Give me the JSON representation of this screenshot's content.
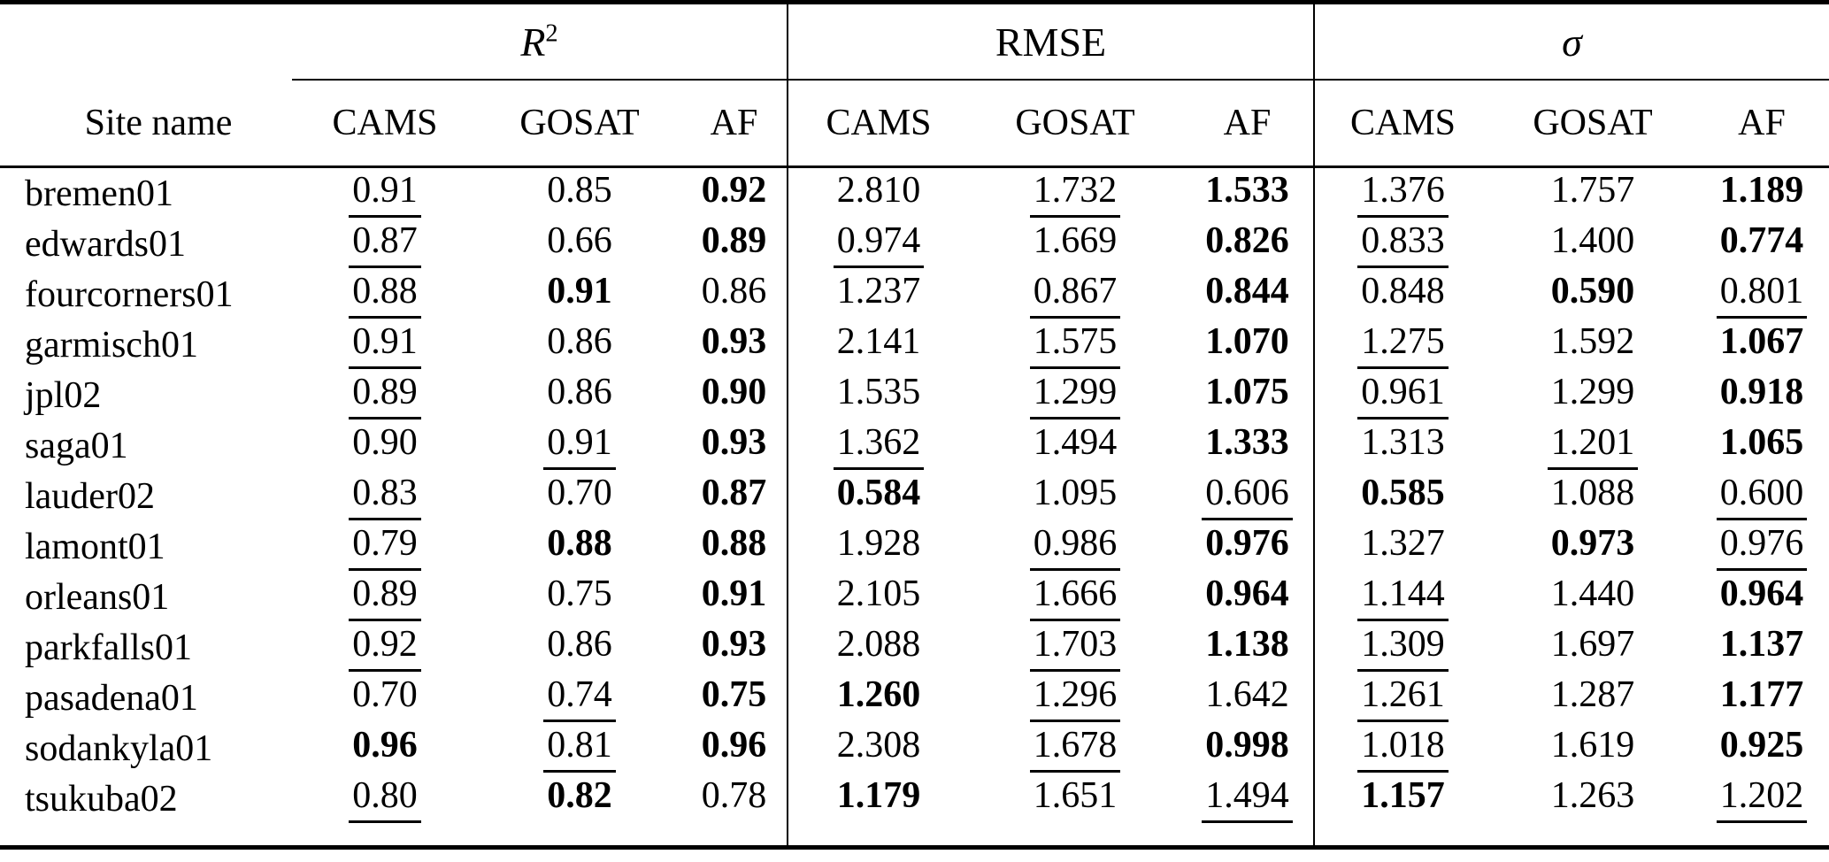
{
  "colors": {
    "text": "#000000",
    "background": "#ffffff",
    "rule": "#000000"
  },
  "table": {
    "site_header": "Site name",
    "groups": [
      {
        "label": "R",
        "sup": "2",
        "columns": [
          "CAMS",
          "GOSAT",
          "AF"
        ]
      },
      {
        "label": "RMSE",
        "sup": "",
        "columns": [
          "CAMS",
          "GOSAT",
          "AF"
        ]
      },
      {
        "label": "σ",
        "sup": "",
        "columns": [
          "CAMS",
          "GOSAT",
          "AF"
        ]
      }
    ],
    "style_key": {
      "n": "normal",
      "b": "bold",
      "u": "underline"
    },
    "rows": [
      {
        "site": "bremen01",
        "cells": [
          {
            "v": "0.91",
            "s": "u"
          },
          {
            "v": "0.85",
            "s": "n"
          },
          {
            "v": "0.92",
            "s": "b"
          },
          {
            "v": "2.810",
            "s": "n"
          },
          {
            "v": "1.732",
            "s": "u"
          },
          {
            "v": "1.533",
            "s": "b"
          },
          {
            "v": "1.376",
            "s": "u"
          },
          {
            "v": "1.757",
            "s": "n"
          },
          {
            "v": "1.189",
            "s": "b"
          }
        ]
      },
      {
        "site": "edwards01",
        "cells": [
          {
            "v": "0.87",
            "s": "u"
          },
          {
            "v": "0.66",
            "s": "n"
          },
          {
            "v": "0.89",
            "s": "b"
          },
          {
            "v": "0.974",
            "s": "u"
          },
          {
            "v": "1.669",
            "s": "n"
          },
          {
            "v": "0.826",
            "s": "b"
          },
          {
            "v": "0.833",
            "s": "u"
          },
          {
            "v": "1.400",
            "s": "n"
          },
          {
            "v": "0.774",
            "s": "b"
          }
        ]
      },
      {
        "site": "fourcorners01",
        "cells": [
          {
            "v": "0.88",
            "s": "u"
          },
          {
            "v": "0.91",
            "s": "b"
          },
          {
            "v": "0.86",
            "s": "n"
          },
          {
            "v": "1.237",
            "s": "n"
          },
          {
            "v": "0.867",
            "s": "u"
          },
          {
            "v": "0.844",
            "s": "b"
          },
          {
            "v": "0.848",
            "s": "n"
          },
          {
            "v": "0.590",
            "s": "b"
          },
          {
            "v": "0.801",
            "s": "u"
          }
        ]
      },
      {
        "site": "garmisch01",
        "cells": [
          {
            "v": "0.91",
            "s": "u"
          },
          {
            "v": "0.86",
            "s": "n"
          },
          {
            "v": "0.93",
            "s": "b"
          },
          {
            "v": "2.141",
            "s": "n"
          },
          {
            "v": "1.575",
            "s": "u"
          },
          {
            "v": "1.070",
            "s": "b"
          },
          {
            "v": "1.275",
            "s": "u"
          },
          {
            "v": "1.592",
            "s": "n"
          },
          {
            "v": "1.067",
            "s": "b"
          }
        ]
      },
      {
        "site": "jpl02",
        "cells": [
          {
            "v": "0.89",
            "s": "u"
          },
          {
            "v": "0.86",
            "s": "n"
          },
          {
            "v": "0.90",
            "s": "b"
          },
          {
            "v": "1.535",
            "s": "n"
          },
          {
            "v": "1.299",
            "s": "u"
          },
          {
            "v": "1.075",
            "s": "b"
          },
          {
            "v": "0.961",
            "s": "u"
          },
          {
            "v": "1.299",
            "s": "n"
          },
          {
            "v": "0.918",
            "s": "b"
          }
        ]
      },
      {
        "site": "saga01",
        "cells": [
          {
            "v": "0.90",
            "s": "n"
          },
          {
            "v": "0.91",
            "s": "u"
          },
          {
            "v": "0.93",
            "s": "b"
          },
          {
            "v": "1.362",
            "s": "u"
          },
          {
            "v": "1.494",
            "s": "n"
          },
          {
            "v": "1.333",
            "s": "b"
          },
          {
            "v": "1.313",
            "s": "n"
          },
          {
            "v": "1.201",
            "s": "u"
          },
          {
            "v": "1.065",
            "s": "b"
          }
        ]
      },
      {
        "site": "lauder02",
        "cells": [
          {
            "v": "0.83",
            "s": "u"
          },
          {
            "v": "0.70",
            "s": "n"
          },
          {
            "v": "0.87",
            "s": "b"
          },
          {
            "v": "0.584",
            "s": "b"
          },
          {
            "v": "1.095",
            "s": "n"
          },
          {
            "v": "0.606",
            "s": "u"
          },
          {
            "v": "0.585",
            "s": "b"
          },
          {
            "v": "1.088",
            "s": "n"
          },
          {
            "v": "0.600",
            "s": "u"
          }
        ]
      },
      {
        "site": "lamont01",
        "cells": [
          {
            "v": "0.79",
            "s": "u"
          },
          {
            "v": "0.88",
            "s": "b"
          },
          {
            "v": "0.88",
            "s": "b"
          },
          {
            "v": "1.928",
            "s": "n"
          },
          {
            "v": "0.986",
            "s": "u"
          },
          {
            "v": "0.976",
            "s": "b"
          },
          {
            "v": "1.327",
            "s": "n"
          },
          {
            "v": "0.973",
            "s": "b"
          },
          {
            "v": "0.976",
            "s": "u"
          }
        ]
      },
      {
        "site": "orleans01",
        "cells": [
          {
            "v": "0.89",
            "s": "u"
          },
          {
            "v": "0.75",
            "s": "n"
          },
          {
            "v": "0.91",
            "s": "b"
          },
          {
            "v": "2.105",
            "s": "n"
          },
          {
            "v": "1.666",
            "s": "u"
          },
          {
            "v": "0.964",
            "s": "b"
          },
          {
            "v": "1.144",
            "s": "u"
          },
          {
            "v": "1.440",
            "s": "n"
          },
          {
            "v": "0.964",
            "s": "b"
          }
        ]
      },
      {
        "site": "parkfalls01",
        "cells": [
          {
            "v": "0.92",
            "s": "u"
          },
          {
            "v": "0.86",
            "s": "n"
          },
          {
            "v": "0.93",
            "s": "b"
          },
          {
            "v": "2.088",
            "s": "n"
          },
          {
            "v": "1.703",
            "s": "u"
          },
          {
            "v": "1.138",
            "s": "b"
          },
          {
            "v": "1.309",
            "s": "u"
          },
          {
            "v": "1.697",
            "s": "n"
          },
          {
            "v": "1.137",
            "s": "b"
          }
        ]
      },
      {
        "site": "pasadena01",
        "cells": [
          {
            "v": "0.70",
            "s": "n"
          },
          {
            "v": "0.74",
            "s": "u"
          },
          {
            "v": "0.75",
            "s": "b"
          },
          {
            "v": "1.260",
            "s": "b"
          },
          {
            "v": "1.296",
            "s": "u"
          },
          {
            "v": "1.642",
            "s": "n"
          },
          {
            "v": "1.261",
            "s": "u"
          },
          {
            "v": "1.287",
            "s": "n"
          },
          {
            "v": "1.177",
            "s": "b"
          }
        ]
      },
      {
        "site": "sodankyla01",
        "cells": [
          {
            "v": "0.96",
            "s": "b"
          },
          {
            "v": "0.81",
            "s": "u"
          },
          {
            "v": "0.96",
            "s": "b"
          },
          {
            "v": "2.308",
            "s": "n"
          },
          {
            "v": "1.678",
            "s": "u"
          },
          {
            "v": "0.998",
            "s": "b"
          },
          {
            "v": "1.018",
            "s": "u"
          },
          {
            "v": "1.619",
            "s": "n"
          },
          {
            "v": "0.925",
            "s": "b"
          }
        ]
      },
      {
        "site": "tsukuba02",
        "cells": [
          {
            "v": "0.80",
            "s": "u"
          },
          {
            "v": "0.82",
            "s": "b"
          },
          {
            "v": "0.78",
            "s": "n"
          },
          {
            "v": "1.179",
            "s": "b"
          },
          {
            "v": "1.651",
            "s": "n"
          },
          {
            "v": "1.494",
            "s": "u"
          },
          {
            "v": "1.157",
            "s": "b"
          },
          {
            "v": "1.263",
            "s": "n"
          },
          {
            "v": "1.202",
            "s": "u"
          }
        ]
      }
    ]
  }
}
